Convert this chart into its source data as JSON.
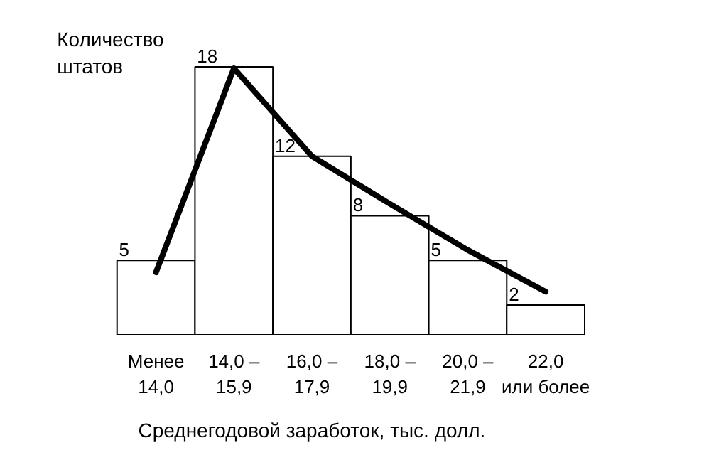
{
  "chart_data": {
    "type": "bar",
    "ylabel": "Количество\nштатов",
    "xlabel": "Среднегодовой заработок, тыс. долл.",
    "categories": [
      "Менее\n14,0",
      "14,0 –\n15,9",
      "16,0 –\n17,9",
      "18,0 –\n19,9",
      "20,0 –\n21,9",
      "22,0\nили более"
    ],
    "series": [
      {
        "color": "#ffffff",
        "values": [
          5,
          18,
          12,
          8,
          5,
          2
        ],
        "value_labels": [
          "5",
          "18",
          "12",
          "8",
          "5",
          "2"
        ]
      },
      {
        "type": "line",
        "color": "#000000",
        "values": [
          4.2,
          17.9,
          12.0,
          8.8,
          5.7,
          2.9
        ]
      }
    ],
    "tick_labels": "x",
    "grid": false
  }
}
